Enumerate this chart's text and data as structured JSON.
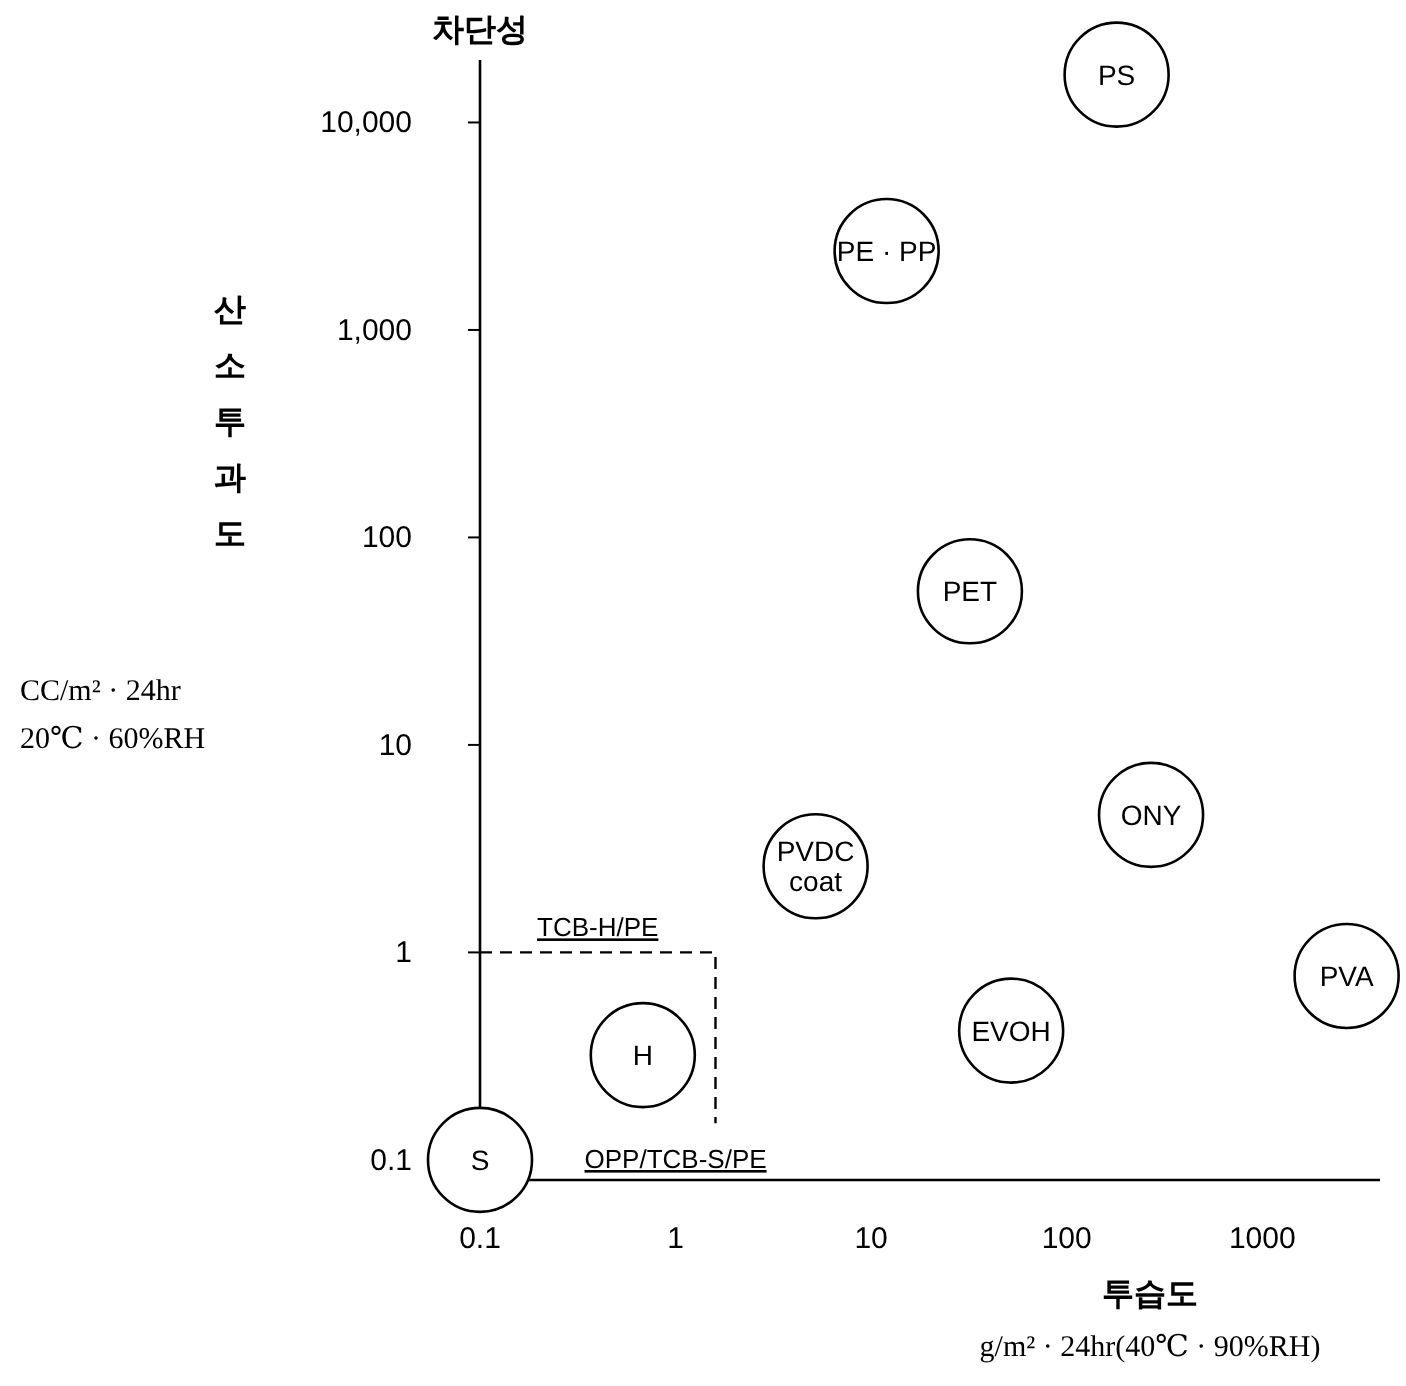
{
  "chart_data": {
    "type": "scatter",
    "title": "차단성",
    "xlabel": "투습도",
    "ylabel": "산소투과도",
    "log": "xy",
    "xlim": [
      0.1,
      4000
    ],
    "ylim": [
      0.08,
      20000
    ],
    "xticks": [
      0.1,
      1,
      10,
      100,
      1000
    ],
    "yticks": [
      0.1,
      1,
      10,
      100,
      {
        "value": 1000,
        "label": "1,000"
      },
      {
        "value": 10000,
        "label": "10,000"
      }
    ],
    "grid": false,
    "marker": "circle",
    "series": [
      {
        "name": "PS",
        "color": "#000000",
        "x": [
          180
        ],
        "values": [
          17000
        ]
      },
      {
        "name": "PE · PP",
        "color": "#000000",
        "x": [
          12
        ],
        "values": [
          2400
        ]
      },
      {
        "name": "PET",
        "color": "#000000",
        "x": [
          32
        ],
        "values": [
          55
        ]
      },
      {
        "name": "ONY",
        "color": "#000000",
        "x": [
          270
        ],
        "values": [
          4.6
        ]
      },
      {
        "name": "PVDC coat",
        "color": "#000000",
        "x": [
          5.2
        ],
        "values": [
          2.6
        ]
      },
      {
        "name": "PVA",
        "color": "#000000",
        "x": [
          2700
        ],
        "values": [
          0.77
        ]
      },
      {
        "name": "EVOH",
        "color": "#000000",
        "x": [
          52
        ],
        "values": [
          0.42
        ]
      },
      {
        "name": "H",
        "color": "#000000",
        "x": [
          0.68
        ],
        "values": [
          0.32
        ]
      },
      {
        "name": "S",
        "color": "#000000",
        "x": [
          0.1
        ],
        "values": [
          0.1
        ]
      },
      {
        "type": "line",
        "line_style": "dashed",
        "marker": "none",
        "color": "#000000",
        "x": [
          0.1,
          1.6,
          1.6
        ],
        "values": [
          1,
          1,
          0.15
        ]
      }
    ],
    "annotations": [
      "CC/m² · 24hr",
      "20℃ · 60%RH",
      "g/m² · 24hr(40℃ · 90%RH)",
      {
        "text": "TCB-H/PE",
        "x": 0.4,
        "y": 1
      },
      "OPP/TCB-S/PE"
    ]
  }
}
